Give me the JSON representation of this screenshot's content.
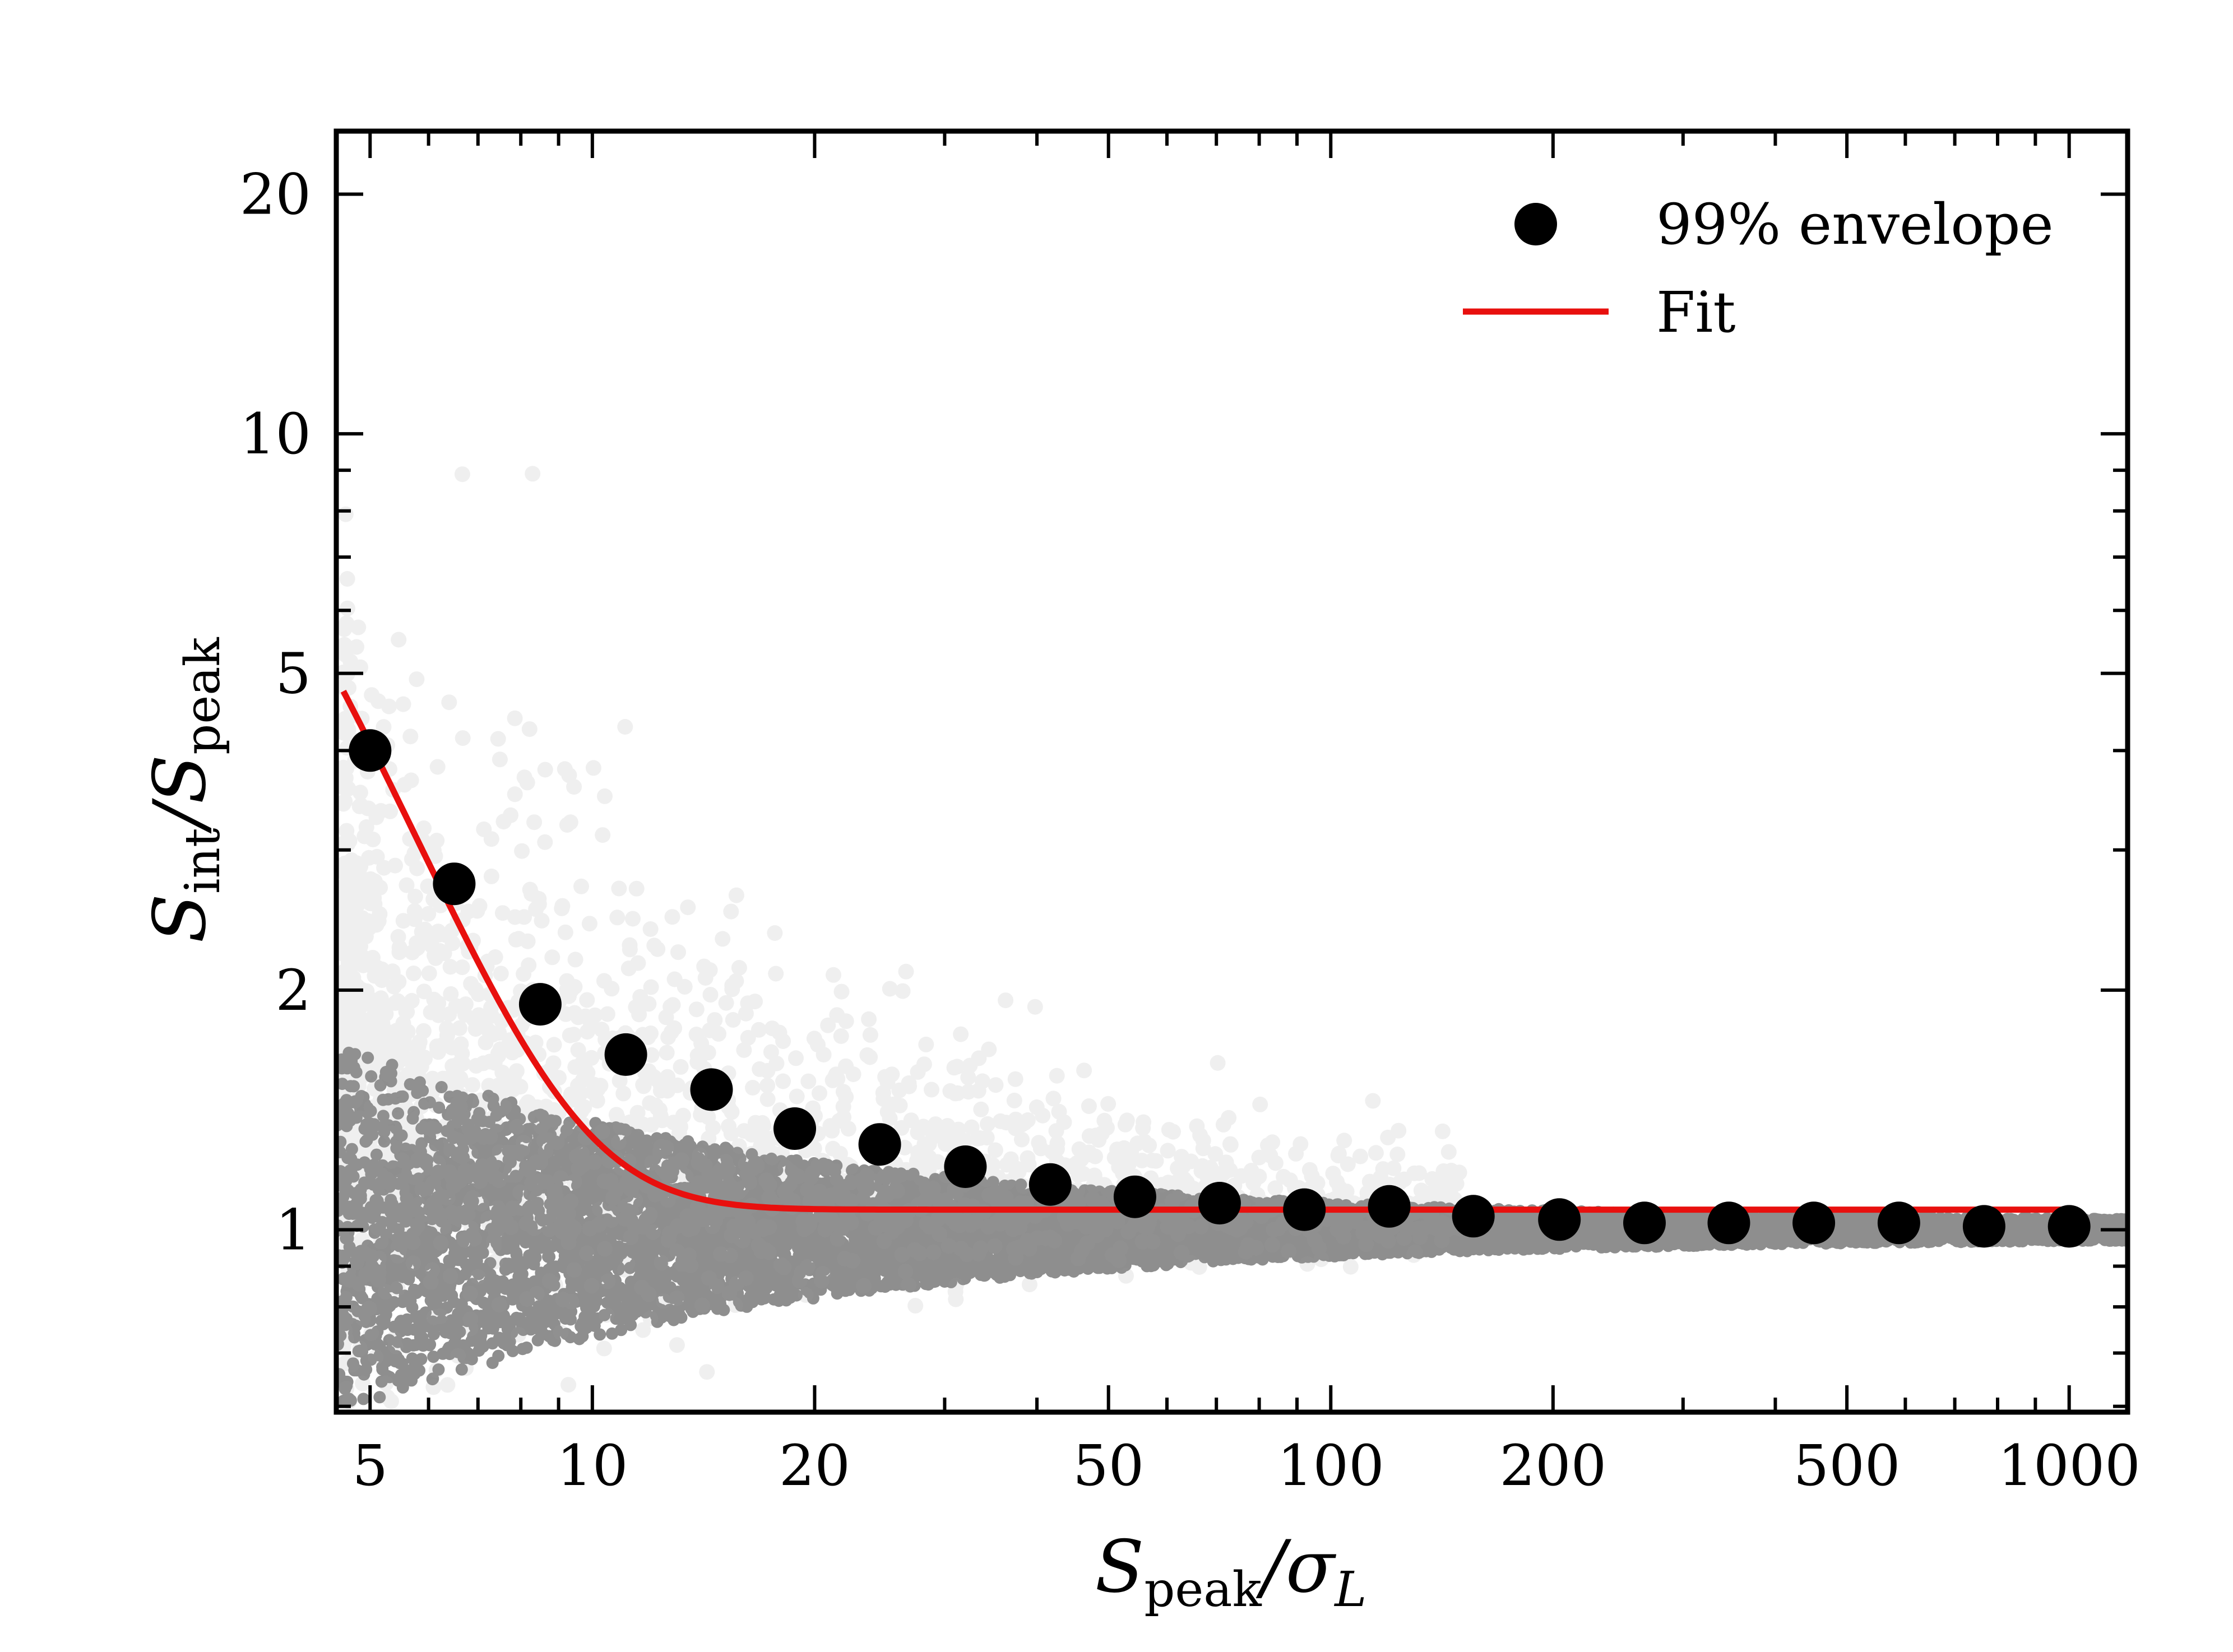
{
  "chart_data": {
    "type": "scatter",
    "x_scale": "log",
    "y_scale": "log",
    "xlim": [
      4.5,
      1200
    ],
    "ylim": [
      0.59,
      24
    ],
    "x_ticks": [
      5,
      10,
      20,
      50,
      100,
      200,
      500,
      1000
    ],
    "x_tick_labels": [
      "5",
      "10",
      "20",
      "50",
      "100",
      "200",
      "500",
      "1000"
    ],
    "y_ticks": [
      1,
      2,
      5,
      10,
      20
    ],
    "y_tick_labels": [
      "1",
      "2",
      "5",
      "10",
      "20"
    ],
    "xlabel": {
      "main": "S",
      "sub": "peak",
      "tail": "/σ",
      "tail_sub": "L"
    },
    "ylabel": {
      "main": "S",
      "sub": "int",
      "mid": "/S",
      "mid_sub": "peak"
    },
    "legend": {
      "position": "top-right",
      "entries": [
        {
          "label": "99% envelope",
          "marker": "circle",
          "color": "#000000"
        },
        {
          "label": "Fit",
          "marker": "line",
          "color": "#e8100e"
        }
      ]
    },
    "series": [
      {
        "name": "99% envelope",
        "x": [
          5.0,
          6.5,
          8.5,
          11.1,
          14.5,
          18.8,
          24.5,
          32.0,
          41.7,
          54.3,
          70.7,
          92.1,
          120,
          156,
          204,
          266,
          346,
          451,
          588,
          767,
          1000
        ],
        "y": [
          4.0,
          2.72,
          1.92,
          1.66,
          1.5,
          1.34,
          1.28,
          1.2,
          1.14,
          1.1,
          1.08,
          1.06,
          1.07,
          1.04,
          1.03,
          1.02,
          1.02,
          1.02,
          1.02,
          1.01,
          1.01
        ]
      },
      {
        "name": "Fit",
        "function": "y = 1.06 + 36.8 * exp(-0.50 * x)",
        "x_range": [
          4.6,
          1000
        ]
      }
    ],
    "background_points": "dense grey cloud of individual sources (S_int/S_peak vs S_peak/sigma_L), spread ~0.6-3 at S/N 5 narrowing to ~1.0 at S/N 1000"
  }
}
